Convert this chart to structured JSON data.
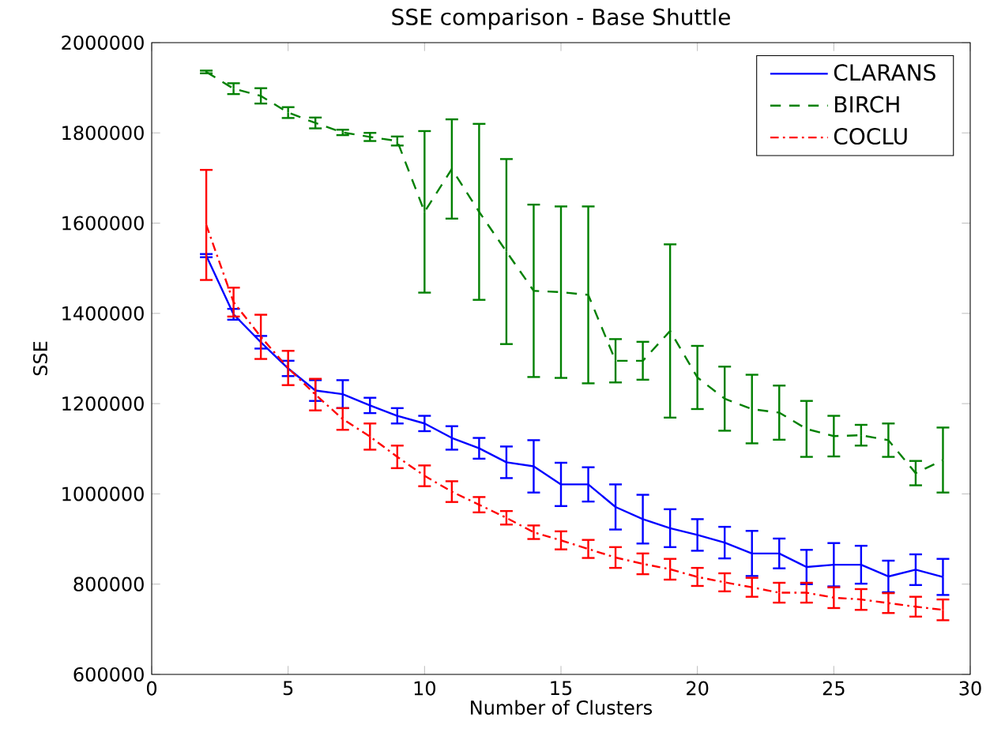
{
  "chart_data": {
    "type": "line",
    "title": "SSE comparison - Base Shuttle",
    "xlabel": "Number of Clusters",
    "ylabel": "SSE",
    "x": [
      2,
      3,
      4,
      5,
      6,
      7,
      8,
      9,
      10,
      11,
      12,
      13,
      14,
      15,
      16,
      17,
      18,
      19,
      20,
      21,
      22,
      23,
      24,
      25,
      26,
      27,
      28,
      29
    ],
    "series": [
      {
        "name": "CLARANS",
        "color": "#0000ff",
        "line_style": "solid",
        "values": [
          1528000,
          1398000,
          1336000,
          1278000,
          1229000,
          1221000,
          1196000,
          1173000,
          1156000,
          1124000,
          1101000,
          1070000,
          1061000,
          1021000,
          1021000,
          971000,
          944000,
          924000,
          909000,
          892000,
          868000,
          868000,
          838000,
          843000,
          843000,
          817000,
          832000,
          816000
        ],
        "errors": [
          3500,
          12000,
          14000,
          17000,
          23000,
          31000,
          17000,
          17000,
          17000,
          26000,
          23000,
          35000,
          58000,
          48000,
          38000,
          50000,
          54000,
          42000,
          35000,
          35000,
          50000,
          33000,
          38000,
          48000,
          42000,
          35000,
          34000,
          40000
        ]
      },
      {
        "name": "BIRCH",
        "color": "#008000",
        "line_style": "dashed",
        "values": [
          1935000,
          1898000,
          1882000,
          1845000,
          1822000,
          1801000,
          1791000,
          1782000,
          1625000,
          1720000,
          1625000,
          1537000,
          1450000,
          1447000,
          1441000,
          1295000,
          1295000,
          1361000,
          1258000,
          1211000,
          1188000,
          1180000,
          1144000,
          1128000,
          1130000,
          1119000,
          1046000,
          1075000
        ],
        "errors": [
          3000,
          12000,
          17000,
          12000,
          12000,
          6000,
          9000,
          10000,
          179000,
          110000,
          195000,
          205000,
          191000,
          190000,
          196000,
          48000,
          42000,
          192000,
          70000,
          71000,
          76000,
          60000,
          62000,
          45000,
          23000,
          37000,
          27000,
          72000
        ]
      },
      {
        "name": "COCLU",
        "color": "#ff0000",
        "line_style": "dashdot",
        "values": [
          1596000,
          1425000,
          1348000,
          1279000,
          1220000,
          1166000,
          1127000,
          1082000,
          1040000,
          1005000,
          976000,
          947000,
          915000,
          897000,
          878000,
          859000,
          845000,
          833000,
          816000,
          804000,
          793000,
          781000,
          781000,
          770000,
          766000,
          758000,
          750000,
          743000
        ],
        "errors": [
          122000,
          32000,
          49000,
          38000,
          35000,
          24000,
          29000,
          25000,
          23000,
          23000,
          17000,
          15000,
          15000,
          20000,
          20000,
          23000,
          23000,
          23000,
          20000,
          20000,
          21000,
          22000,
          22000,
          23000,
          23000,
          22000,
          22000,
          23000
        ]
      }
    ],
    "xlim": [
      0,
      30
    ],
    "xticks": [
      0,
      5,
      10,
      15,
      20,
      25,
      30
    ],
    "ylim": [
      600000,
      2000000
    ],
    "yticks": [
      600000,
      800000,
      1000000,
      1200000,
      1400000,
      1600000,
      1800000,
      2000000
    ],
    "grid": false,
    "legend": "top right",
    "marker": "none"
  }
}
